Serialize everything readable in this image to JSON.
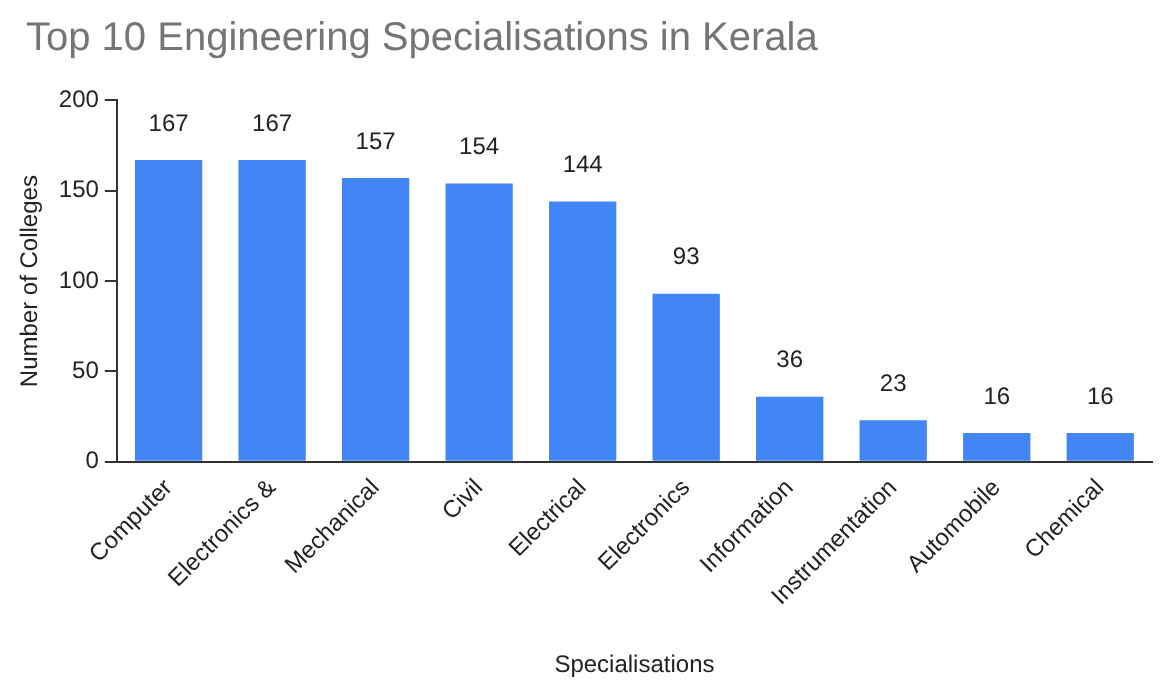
{
  "chart_data": {
    "type": "bar",
    "title": "Top 10 Engineering Specialisations in Kerala",
    "xlabel": "Specialisations",
    "ylabel": "Number of Colleges",
    "categories": [
      "Computer",
      "Electronics &",
      "Mechanical",
      "Civil",
      "Electrical",
      "Electronics",
      "Information",
      "Instrumentation",
      "Automobile",
      "Chemical"
    ],
    "values": [
      167,
      167,
      157,
      154,
      144,
      93,
      36,
      23,
      16,
      16
    ],
    "color": "#4285f4",
    "ylim": [
      0,
      200
    ],
    "yticks": [
      0,
      50,
      100,
      150,
      200
    ],
    "grid": false,
    "data_labels": true
  }
}
